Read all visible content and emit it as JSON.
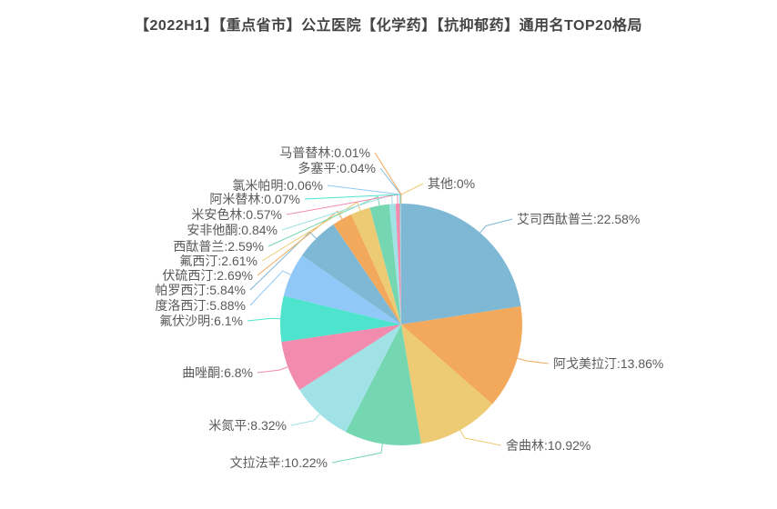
{
  "title": "【2022H1】【重点省市】公立医院【化学药】【抗抑郁药】通用名TOP20格局",
  "chart_data": {
    "type": "pie",
    "title": "【2022H1】【重点省市】公立医院【化学药】【抗抑郁药】通用名TOP20格局",
    "legend_position": "none",
    "label_format": "{name}:{value}%",
    "label_color": "#5a5a5a",
    "start_angle_deg": 0,
    "direction": "clockwise",
    "palette": [
      "#7fb8d4",
      "#f2a95c",
      "#edcb74",
      "#75d6b2",
      "#a0e2e6",
      "#f18caf",
      "#4de3cd",
      "#90c9f7"
    ],
    "slices": [
      {
        "name": "艾司西酞普兰",
        "pct": "22.58"
      },
      {
        "name": "阿戈美拉汀",
        "pct": "13.86"
      },
      {
        "name": "舍曲林",
        "pct": "10.92"
      },
      {
        "name": "文拉法辛",
        "pct": "10.22"
      },
      {
        "name": "米氮平",
        "pct": "8.32"
      },
      {
        "name": "曲唑酮",
        "pct": "6.8"
      },
      {
        "name": "氟伏沙明",
        "pct": "6.1"
      },
      {
        "name": "度洛西汀",
        "pct": "5.88"
      },
      {
        "name": "帕罗西汀",
        "pct": "5.84"
      },
      {
        "name": "伏硫西汀",
        "pct": "2.69"
      },
      {
        "name": "氟西汀",
        "pct": "2.61"
      },
      {
        "name": "西酞普兰",
        "pct": "2.59"
      },
      {
        "name": "安非他酮",
        "pct": "0.84"
      },
      {
        "name": "米安色林",
        "pct": "0.57"
      },
      {
        "name": "阿米替林",
        "pct": "0.07"
      },
      {
        "name": "氯米帕明",
        "pct": "0.06"
      },
      {
        "name": "多塞平",
        "pct": "0.04"
      },
      {
        "name": "马普替林",
        "pct": "0.01"
      },
      {
        "name": "其他",
        "pct": "0"
      }
    ]
  }
}
